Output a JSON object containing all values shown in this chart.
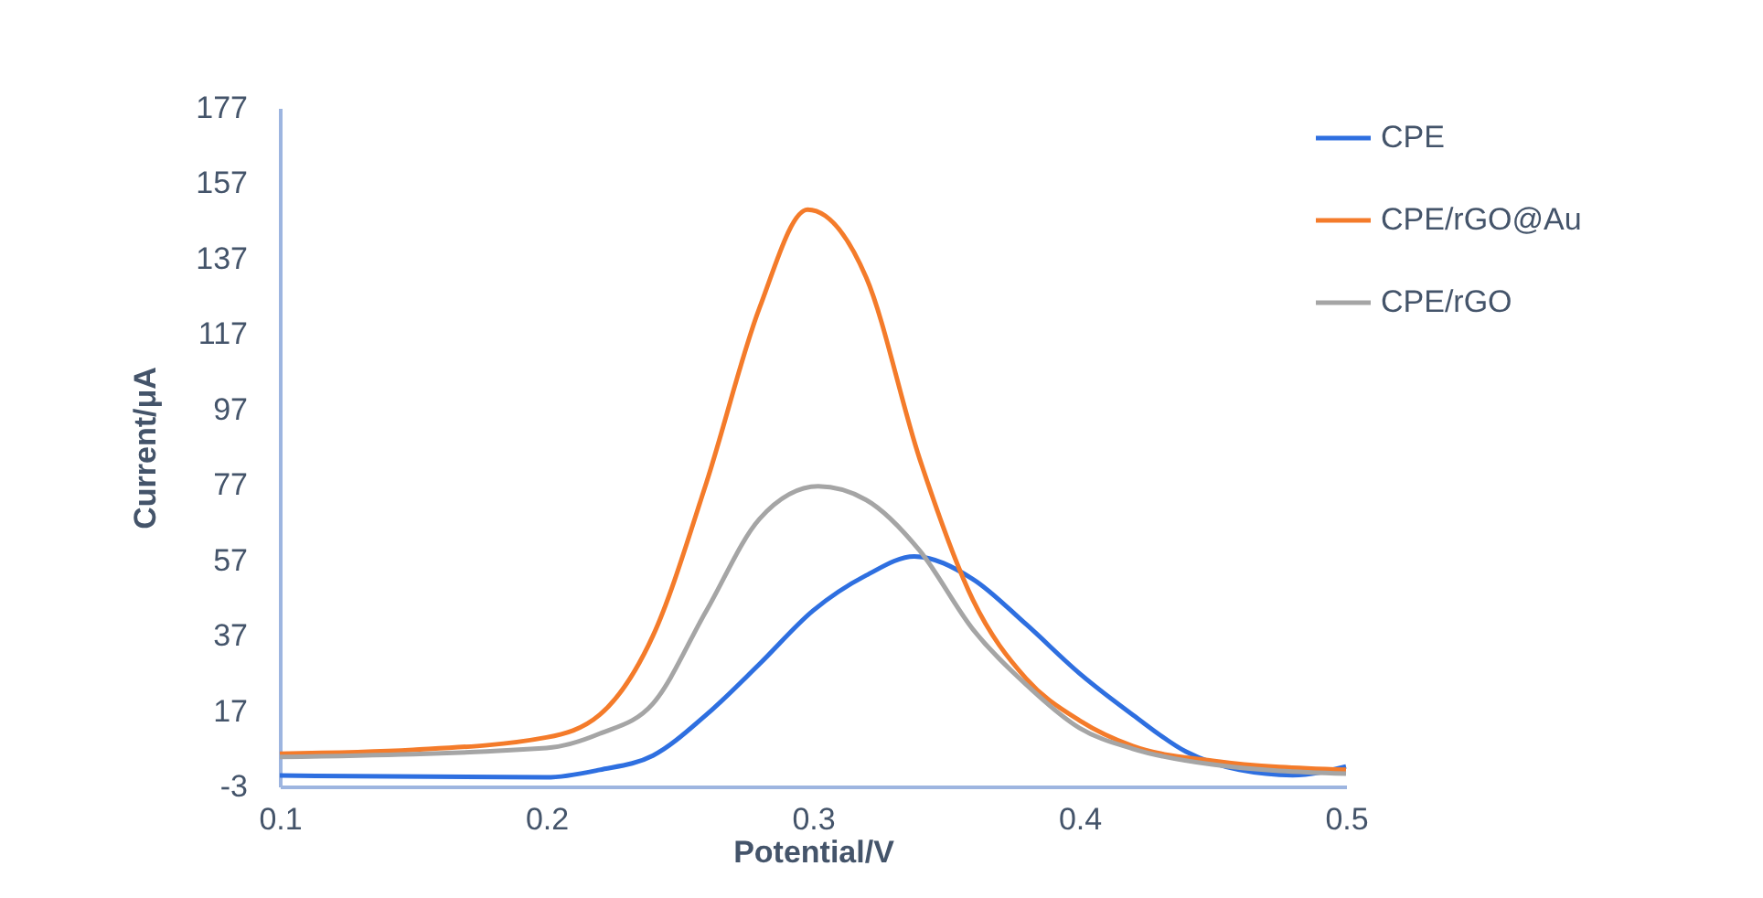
{
  "chart_data": {
    "type": "line",
    "xlabel": "Potential/V",
    "ylabel": "Current/μA",
    "xlim": [
      0.1,
      0.5
    ],
    "xticks": [
      0.1,
      0.2,
      0.3,
      0.4,
      0.5
    ],
    "ylim": [
      -3,
      177
    ],
    "yticks": [
      -3,
      17,
      37,
      57,
      77,
      97,
      117,
      137,
      157,
      177
    ],
    "grid": false,
    "legend": "right",
    "marker": "none",
    "line_style": "solid",
    "series": [
      {
        "name": "CPE",
        "color": "#2e6fe0",
        "x": [
          0.1,
          0.2,
          0.22,
          0.24,
          0.26,
          0.28,
          0.3,
          0.32,
          0.338,
          0.36,
          0.38,
          0.4,
          0.42,
          0.44,
          0.46,
          0.48,
          0.5
        ],
        "values": [
          -0.1,
          -0.6,
          1.4,
          5.2,
          16,
          29.5,
          43.6,
          53,
          58,
          52,
          40,
          27,
          16,
          6.2,
          1.4,
          0,
          2.3
        ]
      },
      {
        "name": "CPE/rGO@Au",
        "color": "#f47b2a",
        "x": [
          0.1,
          0.15,
          0.2,
          0.22,
          0.24,
          0.26,
          0.28,
          0.298,
          0.32,
          0.34,
          0.36,
          0.38,
          0.4,
          0.42,
          0.45,
          0.5
        ],
        "values": [
          5.7,
          6.7,
          10,
          16,
          37,
          77.5,
          124,
          150,
          132,
          84,
          46.5,
          25.6,
          14.5,
          7.7,
          3.8,
          1.4
        ]
      },
      {
        "name": "CPE/rGO",
        "color": "#a5a5a5",
        "x": [
          0.1,
          0.2,
          0.22,
          0.24,
          0.26,
          0.28,
          0.302,
          0.32,
          0.34,
          0.36,
          0.38,
          0.4,
          0.42,
          0.45,
          0.5
        ],
        "values": [
          4.8,
          7.2,
          11,
          19,
          43.6,
          68,
          76.6,
          73,
          59.6,
          38.7,
          24,
          12.5,
          7,
          2.8,
          0.4
        ]
      }
    ]
  }
}
